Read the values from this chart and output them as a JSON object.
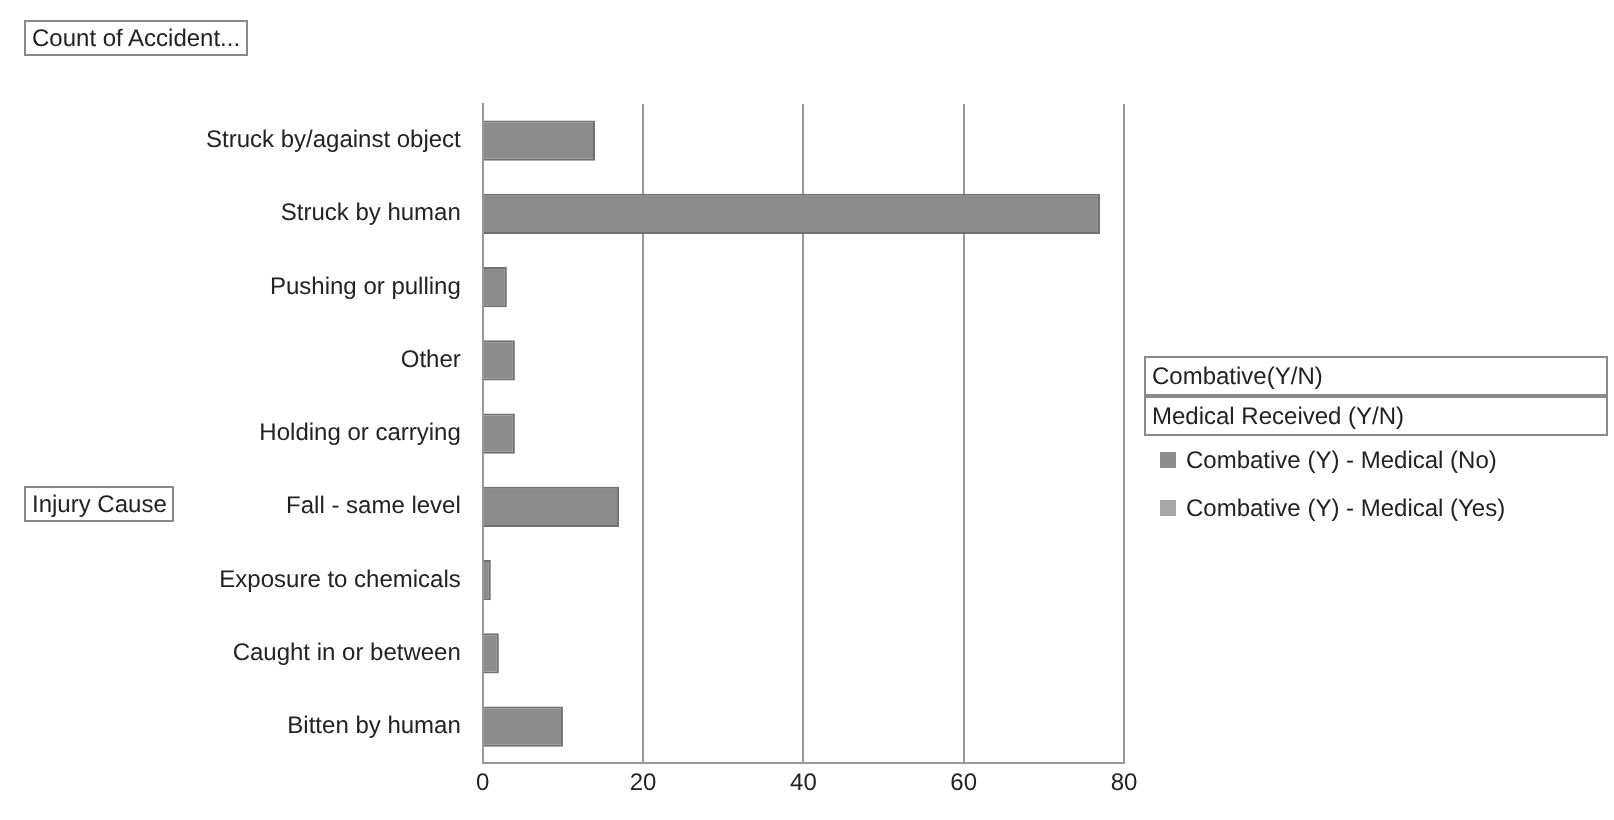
{
  "chart_data": {
    "type": "bar",
    "orientation": "horizontal",
    "stacked": true,
    "title": "Count of Accident...",
    "ylabel": "Injury Cause",
    "legend_title": "Combative(Y/N)\nMedical Received (Y/N)",
    "categories": [
      "Struck by/against object",
      "Struck by human",
      "Pushing or pulling",
      "Other",
      "Holding or carrying",
      "Fall - same level",
      "Exposure to chemicals",
      "Caught in or between",
      "Bitten by human"
    ],
    "series": [
      {
        "name": "Combative (Y)  - Medical (No)",
        "color": "#8c8c8c",
        "values": [
          14,
          77,
          3,
          4,
          4,
          17,
          1,
          2,
          10
        ]
      },
      {
        "name": "Combative (Y)  - Medical (Yes)",
        "color": "#a6a6a6",
        "values": [
          null,
          null,
          null,
          null,
          null,
          null,
          null,
          null,
          null
        ]
      }
    ],
    "xlim": [
      0,
      80
    ],
    "xticks": [
      0,
      20,
      40,
      60,
      80
    ],
    "grid": "x",
    "legend": "right"
  }
}
